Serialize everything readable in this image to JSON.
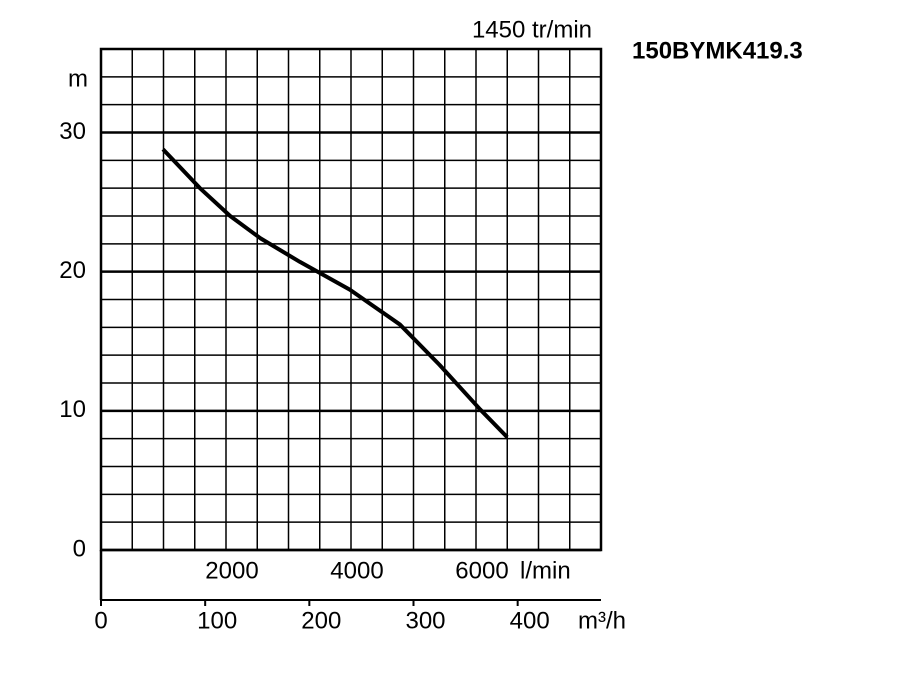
{
  "chart_data": {
    "type": "line",
    "title": "150BYMK419.3",
    "annotation": "1450 tr/min",
    "xlabel": "m³/h",
    "ylabel": "m",
    "x2label": "l/min",
    "x": [
      59.5,
      95,
      124,
      153,
      191,
      239,
      287,
      325,
      364,
      390
    ],
    "series": [
      {
        "name": "150BYMK419.3",
        "color": "#000000",
        "values": [
          28.8,
          26,
          24,
          22.4,
          20.7,
          18.7,
          16.2,
          13.3,
          10.1,
          8.1
        ]
      }
    ],
    "xlim": [
      0,
      480
    ],
    "xticks": [
      0,
      100,
      200,
      300,
      400
    ],
    "x2lim": [
      0,
      8000
    ],
    "x2ticks": [
      2000,
      4000,
      6000
    ],
    "ylim": [
      0,
      36
    ],
    "yticks": [
      0,
      10,
      20,
      30
    ],
    "grid": true,
    "minor_grid": {
      "x2": 500,
      "y": 2
    }
  }
}
